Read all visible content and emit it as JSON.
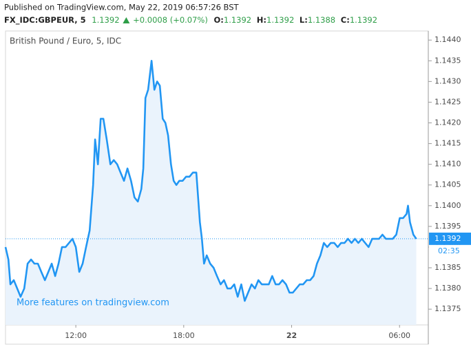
{
  "header": {
    "published": "Published on TradingView.com, May 22, 2019 06:57:26 BST",
    "symbol": "FX_IDC:GBPEUR, 5",
    "last": "1.1392",
    "change": "+0.0008 (+0.07%)",
    "ohlc": [
      {
        "label": "O:",
        "value": "1.1392"
      },
      {
        "label": "H:",
        "value": "1.1392"
      },
      {
        "label": "L:",
        "value": "1.1388"
      },
      {
        "label": "C:",
        "value": "1.1392"
      }
    ]
  },
  "chart_data": {
    "type": "line",
    "title": "British Pound / Euro, 5, IDC",
    "watermark": "More features on tradingview.com",
    "x": [
      8.09,
      8.25,
      8.36,
      8.55,
      8.74,
      8.93,
      9.13,
      9.32,
      9.51,
      9.7,
      9.89,
      10.08,
      10.28,
      10.47,
      10.66,
      10.85,
      11.04,
      11.23,
      11.43,
      11.62,
      11.81,
      12,
      12.19,
      12.38,
      12.57,
      12.77,
      12.96,
      13.07,
      13.23,
      13.38,
      13.53,
      13.72,
      13.92,
      14.11,
      14.3,
      14.49,
      14.68,
      14.87,
      15.07,
      15.26,
      15.45,
      15.64,
      15.75,
      15.87,
      16.02,
      16.21,
      16.37,
      16.52,
      16.67,
      16.83,
      16.98,
      17.13,
      17.29,
      17.44,
      17.59,
      17.75,
      17.94,
      18.13,
      18.32,
      18.51,
      18.7,
      18.9,
      19.01,
      19.13,
      19.28,
      19.47,
      19.66,
      19.85,
      20.05,
      20.24,
      20.43,
      20.62,
      20.81,
      21.0,
      21.2,
      21.39,
      21.58,
      21.77,
      21.96,
      22.15,
      22.34,
      22.54,
      22.73,
      22.92,
      23.11,
      23.3,
      23.49,
      23.69,
      23.88,
      24.07,
      24.26,
      24.45,
      24.64,
      24.84,
      25.03,
      25.22,
      25.41,
      25.6,
      25.79,
      25.98,
      26.18,
      26.37,
      26.56,
      26.75,
      26.94,
      27.13,
      27.33,
      27.52,
      27.71,
      27.9,
      28.09,
      28.28,
      28.48,
      28.67,
      28.86,
      29.05,
      29.24,
      29.43,
      29.62,
      29.82,
      30.01,
      30.2,
      30.39,
      30.47,
      30.58,
      30.77,
      30.93
    ],
    "series": [
      {
        "name": "GBPEUR",
        "color": "#2196f3",
        "values": [
          1.139,
          1.1387,
          1.1381,
          1.1382,
          1.138,
          1.1378,
          1.138,
          1.1386,
          1.1387,
          1.1386,
          1.1386,
          1.1384,
          1.1382,
          1.1384,
          1.1386,
          1.1383,
          1.1386,
          1.139,
          1.139,
          1.1391,
          1.1392,
          1.139,
          1.1384,
          1.1386,
          1.139,
          1.1394,
          1.1405,
          1.1416,
          1.141,
          1.1421,
          1.1421,
          1.1416,
          1.141,
          1.1411,
          1.141,
          1.1408,
          1.1406,
          1.1409,
          1.1406,
          1.1402,
          1.1401,
          1.1404,
          1.1409,
          1.1426,
          1.1428,
          1.1435,
          1.1428,
          1.143,
          1.1429,
          1.1421,
          1.142,
          1.1417,
          1.141,
          1.1406,
          1.1405,
          1.1406,
          1.1406,
          1.1407,
          1.1407,
          1.1408,
          1.1408,
          1.1396,
          1.1392,
          1.1386,
          1.1388,
          1.1386,
          1.1385,
          1.1383,
          1.1381,
          1.1382,
          1.138,
          1.138,
          1.1381,
          1.1378,
          1.1381,
          1.1377,
          1.1379,
          1.1381,
          1.138,
          1.1382,
          1.1381,
          1.1381,
          1.1381,
          1.1383,
          1.1381,
          1.1381,
          1.1382,
          1.1381,
          1.1379,
          1.1379,
          1.138,
          1.1381,
          1.1381,
          1.1382,
          1.1382,
          1.1383,
          1.1386,
          1.1388,
          1.1391,
          1.139,
          1.1391,
          1.1391,
          1.139,
          1.1391,
          1.1391,
          1.1392,
          1.1391,
          1.1392,
          1.1391,
          1.1392,
          1.1391,
          1.139,
          1.1392,
          1.1392,
          1.1392,
          1.1393,
          1.1392,
          1.1392,
          1.1392,
          1.1393,
          1.1397,
          1.1397,
          1.1398,
          1.14,
          1.1396,
          1.1393,
          1.1392
        ]
      }
    ],
    "area_color": "#eaf3fc",
    "last_price": 1.1392,
    "countdown": "02:35",
    "xlim": [
      8.09,
      31.6
    ],
    "ylim": [
      1.13712,
      1.14422
    ],
    "xticks": [
      {
        "value": 12,
        "label": "12:00"
      },
      {
        "value": 18,
        "label": "18:00"
      },
      {
        "value": 24,
        "label": "22"
      },
      {
        "value": 30,
        "label": "06:00"
      }
    ],
    "yticks": [
      1.1375,
      {
        "value": 1.138,
        "label": "1.1380"
      },
      1.1385,
      {
        "value": 1.139,
        "label": "1.1390"
      },
      1.1395,
      {
        "value": 1.14,
        "label": "1.1400"
      },
      1.1405,
      {
        "value": 1.141,
        "label": "1.1410"
      },
      1.1415,
      {
        "value": 1.142,
        "label": "1.1420"
      },
      1.1425,
      {
        "value": 1.143,
        "label": "1.1430"
      },
      1.1435,
      {
        "value": 1.144,
        "label": "1.1440"
      }
    ],
    "grid": false
  }
}
